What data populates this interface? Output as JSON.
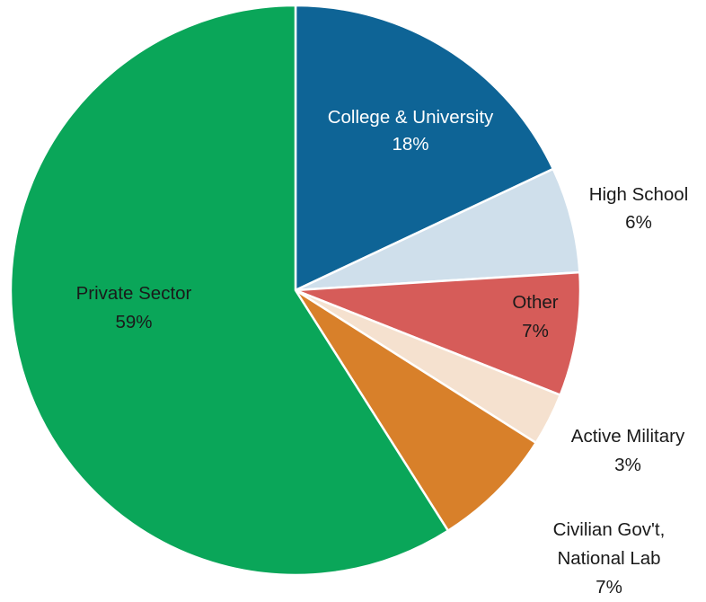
{
  "chart_data": {
    "type": "pie",
    "title": "",
    "start_angle_deg": 0,
    "direction": "clockwise",
    "slices": [
      {
        "label": "College & University",
        "percent_label": "18%",
        "value": 18,
        "color": "#0e6496",
        "label_color": "#ffffff"
      },
      {
        "label": "High School",
        "percent_label": "6%",
        "value": 6,
        "color": "#cfdfeb",
        "label_color": "#1a1a1a"
      },
      {
        "label": "Other",
        "percent_label": "7%",
        "value": 7,
        "color": "#d65c59",
        "label_color": "#1a1a1a"
      },
      {
        "label": "Active Military",
        "percent_label": "3%",
        "value": 3,
        "color": "#f5e1cf",
        "label_color": "#1a1a1a"
      },
      {
        "label": "Civilian Gov't,",
        "label2": "National Lab",
        "percent_label": "7%",
        "value": 7,
        "color": "#d8802a",
        "label_color": "#1a1a1a"
      },
      {
        "label": "Private Sector",
        "percent_label": "59%",
        "value": 59,
        "color": "#0aa659",
        "label_color": "#1a1a1a"
      }
    ]
  }
}
